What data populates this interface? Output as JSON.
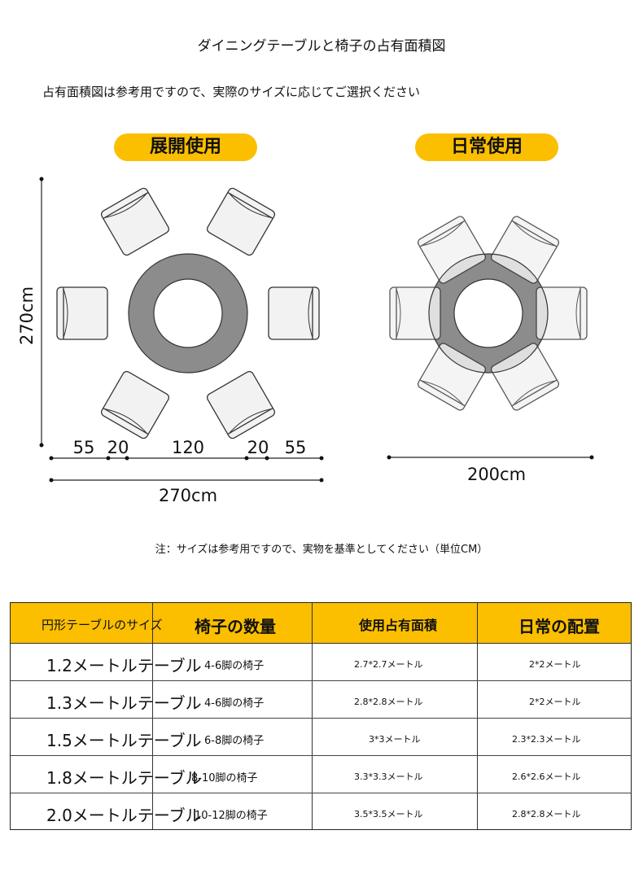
{
  "title": "ダイニングテーブルと椅子の占有面積図",
  "subtitle": "占有面積図は参考用ですので、実際のサイズに応じてご選択ください",
  "labels": {
    "expanded": "展開使用",
    "daily": "日常使用"
  },
  "expanded_dims": {
    "height": "270cm",
    "segments": [
      "55",
      "20",
      "120",
      "20",
      "55"
    ],
    "width": "270cm"
  },
  "daily_dims": {
    "width": "200cm"
  },
  "note": "注：サイズは参考用ですので、実物を基準としてください（単位CM）",
  "colors": {
    "accent": "#fbbf00",
    "table": "#8c8c8c",
    "chair": "#f2f2f2"
  },
  "table": {
    "headers": [
      "円形テーブルのサイズ",
      "椅子の数量",
      "使用占有面積",
      "日常の配置"
    ],
    "rows": [
      [
        "1.2メートルテーブル",
        "4-6脚の椅子",
        "2.7*2.7メートル",
        "2*2メートル"
      ],
      [
        "1.3メートルテーブル",
        "4-6脚の椅子",
        "2.8*2.8メートル",
        "2*2メートル"
      ],
      [
        "1.5メートルテーブル",
        "6-8脚の椅子",
        "3*3メートル",
        "2.3*2.3メートル"
      ],
      [
        "1.8メートルテーブル",
        "8-10脚の椅子",
        "3.3*3.3メートル",
        "2.6*2.6メートル"
      ],
      [
        "2.0メートルテーブル",
        "10-12脚の椅子",
        "3.5*3.5メートル",
        "2.8*2.8メートル"
      ]
    ]
  }
}
